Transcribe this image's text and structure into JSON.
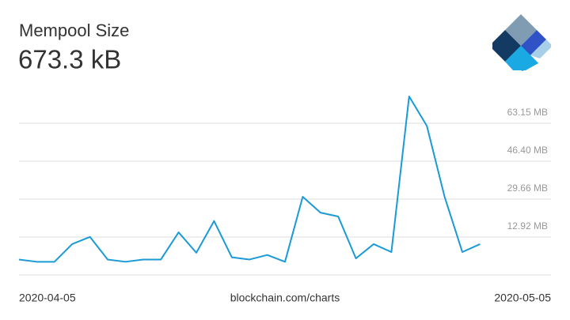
{
  "chart_data": {
    "type": "line",
    "title": "Mempool Size",
    "subtitle": "673.3 kB",
    "source": "blockchain.com/charts",
    "x": [
      "2020-04-05",
      "2020-04-06",
      "2020-04-07",
      "2020-04-08",
      "2020-04-09",
      "2020-04-10",
      "2020-04-11",
      "2020-04-12",
      "2020-04-13",
      "2020-04-14",
      "2020-04-15",
      "2020-04-16",
      "2020-04-17",
      "2020-04-18",
      "2020-04-19",
      "2020-04-20",
      "2020-04-21",
      "2020-04-22",
      "2020-04-23",
      "2020-04-24",
      "2020-04-25",
      "2020-04-26",
      "2020-04-27",
      "2020-04-28",
      "2020-04-29",
      "2020-04-30",
      "2020-05-01"
    ],
    "series": [
      {
        "name": "Mempool Size",
        "color": "#1a9ad6",
        "values": [
          3,
          2,
          2,
          9.8,
          13,
          3,
          2,
          3,
          3,
          15,
          6,
          20,
          4,
          3,
          5,
          2,
          30.7,
          23.7,
          22,
          3.5,
          9.8,
          6.3,
          75,
          62,
          30.7,
          6.3,
          9.8
        ]
      }
    ],
    "xlim": [
      "2020-04-05",
      "2020-05-05"
    ],
    "ylim": [
      -3.82,
      82
    ],
    "yticks": [
      {
        "value": 12.92,
        "label": "12.92 MB"
      },
      {
        "value": 29.66,
        "label": "29.66 MB"
      },
      {
        "value": 46.4,
        "label": "46.40 MB"
      },
      {
        "value": 63.15,
        "label": "63.15 MB"
      }
    ],
    "grid": true
  }
}
